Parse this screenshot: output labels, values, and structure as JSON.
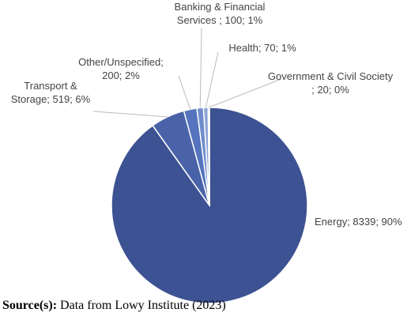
{
  "chart_data": {
    "type": "pie",
    "values": [
      8339,
      519,
      200,
      100,
      70,
      20
    ],
    "value_labels": [
      "Energy; 8339; 90%",
      "Transport & Storage; 519; 6%",
      "Other/Unspecified; 200; 2%",
      "Banking & Financial Services ; 100; 1%",
      "Health; 70; 1%",
      "Government & Civil Society ; 20; 0%"
    ],
    "colors": [
      "#3d5292",
      "#4a63a8",
      "#5574bd",
      "#6f8ccc",
      "#8aa3d8",
      "#a9bde6"
    ],
    "source_label": "Source(s):",
    "source_text": "Data from Lowy Institute (2023)"
  }
}
